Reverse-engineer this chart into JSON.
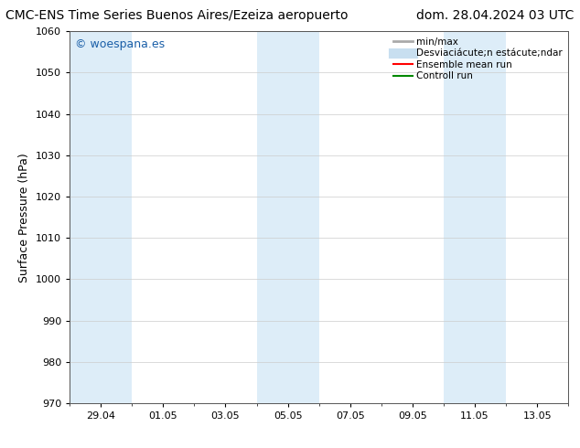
{
  "title_left": "CMC-ENS Time Series Buenos Aires/Ezeiza aeropuerto",
  "title_right": "dom. 28.04.2024 03 UTC",
  "ylabel": "Surface Pressure (hPa)",
  "ylim": [
    970,
    1060
  ],
  "yticks": [
    970,
    980,
    990,
    1000,
    1010,
    1020,
    1030,
    1040,
    1050,
    1060
  ],
  "xtick_labels": [
    "29.04",
    "01.05",
    "03.05",
    "05.05",
    "07.05",
    "09.05",
    "11.05",
    "13.05"
  ],
  "background_color": "#ffffff",
  "plot_bg_color": "#ffffff",
  "shaded_band_color": "#ddedf8",
  "watermark_text": "© woespana.es",
  "watermark_color": "#1a5fa8",
  "legend_entries": [
    {
      "label": "min/max",
      "color": "#aaaaaa",
      "lw": 2
    },
    {
      "label": "Desviaciácute;n estácute;ndar",
      "color": "#c8dff0",
      "lw": 8
    },
    {
      "label": "Ensemble mean run",
      "color": "#ff0000",
      "lw": 1.5
    },
    {
      "label": "Controll run",
      "color": "#008800",
      "lw": 1.5
    }
  ],
  "title_fontsize": 10,
  "tick_fontsize": 8,
  "ylabel_fontsize": 9,
  "watermark_fontsize": 9,
  "legend_fontsize": 7.5
}
